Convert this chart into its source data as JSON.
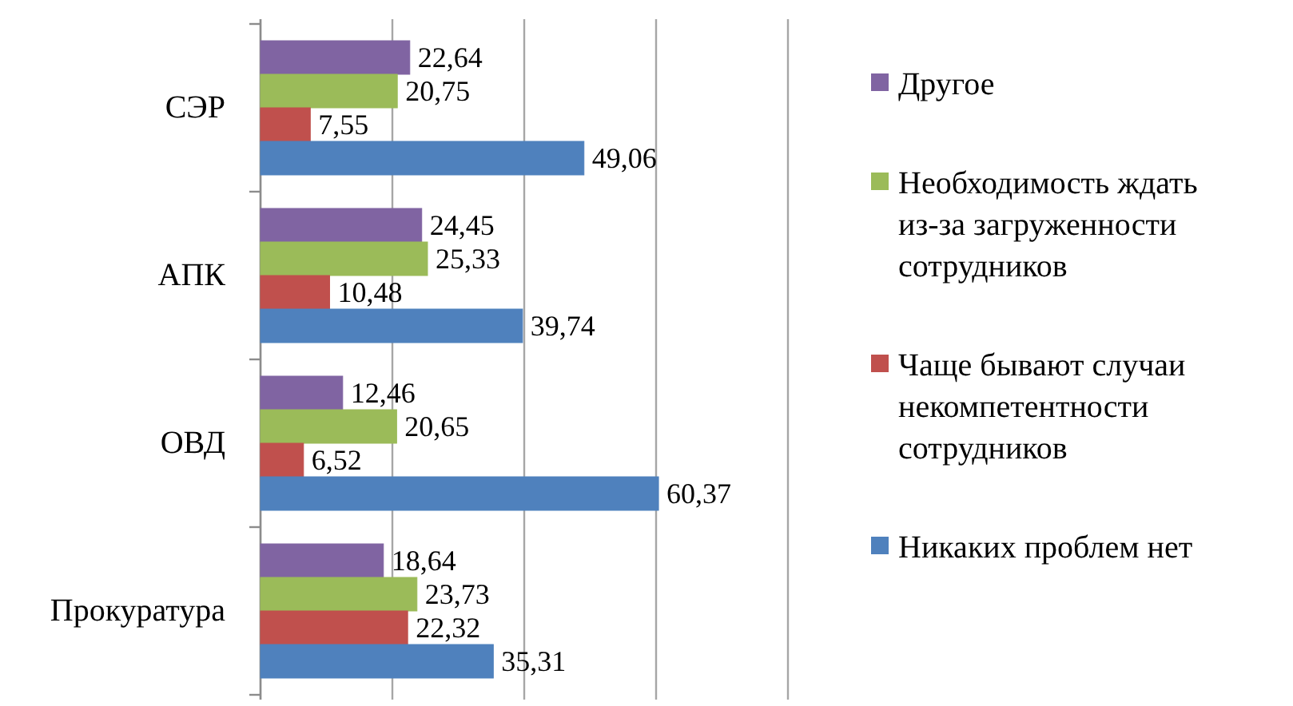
{
  "chart_data": {
    "type": "bar",
    "orientation": "horizontal",
    "categories": [
      "СЭР",
      "АПК",
      "ОВД",
      "Прокуратура"
    ],
    "series": [
      {
        "name": "Другое",
        "color": "#8064a2",
        "values": [
          22.64,
          24.45,
          12.46,
          18.64
        ],
        "value_labels": [
          "22,64",
          "24,45",
          "12,46",
          "18,64"
        ]
      },
      {
        "name": "Необходимость ждать из-за загруженности сотрудников",
        "color": "#9bbb59",
        "values": [
          20.75,
          25.33,
          20.65,
          23.73
        ],
        "value_labels": [
          "20,75",
          "25,33",
          "20,65",
          "23,73"
        ]
      },
      {
        "name": "Чаще бывают случаи некомпетентности сотрудников",
        "color": "#c0504d",
        "values": [
          7.55,
          10.48,
          6.52,
          22.32
        ],
        "value_labels": [
          "7,55",
          "10,48",
          "6,52",
          "22,32"
        ]
      },
      {
        "name": "Никаких проблем нет",
        "color": "#4f81bd",
        "values": [
          49.06,
          39.74,
          60.37,
          35.31
        ],
        "value_labels": [
          "49,06",
          "39,74",
          "60,37",
          "35,31"
        ]
      }
    ],
    "xlim": [
      0,
      80
    ],
    "xticks": [
      {
        "value": 0,
        "label": null
      },
      {
        "value": 20,
        "label": null
      },
      {
        "value": 40,
        "label": null
      },
      {
        "value": 60,
        "label": null
      },
      {
        "value": 80,
        "label": null
      }
    ],
    "tick_labels": "y",
    "grid": "x",
    "legend": "right"
  }
}
